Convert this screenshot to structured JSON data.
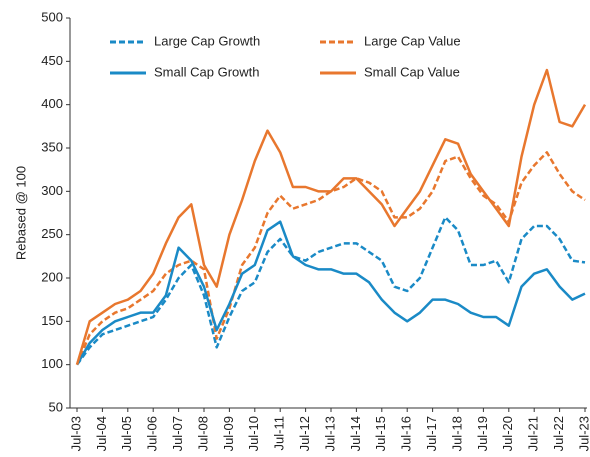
{
  "chart_data": {
    "type": "line",
    "y_axis_label": "Rebased @ 100",
    "categories": [
      "Jul-03",
      null,
      "Jul-04",
      null,
      "Jul-05",
      null,
      "Jul-06",
      null,
      "Jul-07",
      null,
      "Jul-08",
      null,
      "Jul-09",
      null,
      "Jul-10",
      null,
      "Jul-11",
      null,
      "Jul-12",
      null,
      "Jul-13",
      null,
      "Jul-14",
      null,
      "Jul-15",
      null,
      "Jul-16",
      null,
      "Jul-17",
      null,
      "Jul-18",
      null,
      "Jul-19",
      null,
      "Jul-20",
      null,
      "Jul-21",
      null,
      "Jul-22",
      null,
      "Jul-23"
    ],
    "series": [
      {
        "name": "Large Cap Growth",
        "color": "#1a8ac6",
        "style": "dashed",
        "values": [
          100,
          120,
          135,
          140,
          145,
          150,
          155,
          175,
          200,
          215,
          180,
          120,
          155,
          185,
          195,
          230,
          245,
          225,
          220,
          230,
          235,
          240,
          240,
          230,
          220,
          190,
          185,
          200,
          235,
          270,
          255,
          215,
          215,
          220,
          195,
          245,
          260,
          260,
          245,
          220,
          218
        ]
      },
      {
        "name": "Large Cap Value",
        "color": "#e8772e",
        "style": "dashed",
        "values": [
          100,
          135,
          150,
          160,
          165,
          175,
          185,
          205,
          215,
          220,
          210,
          130,
          165,
          215,
          235,
          275,
          295,
          280,
          285,
          290,
          300,
          305,
          315,
          310,
          300,
          270,
          270,
          280,
          300,
          335,
          340,
          315,
          295,
          285,
          265,
          310,
          330,
          345,
          320,
          300,
          290
        ]
      },
      {
        "name": "Small Cap Growth",
        "color": "#1a8ac6",
        "style": "solid",
        "values": [
          100,
          125,
          140,
          150,
          155,
          160,
          160,
          180,
          235,
          220,
          190,
          140,
          170,
          205,
          215,
          255,
          265,
          225,
          215,
          210,
          210,
          205,
          205,
          195,
          175,
          160,
          150,
          160,
          175,
          175,
          170,
          160,
          155,
          155,
          145,
          190,
          205,
          210,
          190,
          175,
          182
        ]
      },
      {
        "name": "Small Cap Value",
        "color": "#e8772e",
        "style": "solid",
        "values": [
          100,
          150,
          160,
          170,
          175,
          185,
          205,
          240,
          270,
          285,
          215,
          190,
          250,
          290,
          335,
          370,
          345,
          305,
          305,
          300,
          300,
          315,
          315,
          300,
          285,
          260,
          280,
          300,
          330,
          360,
          355,
          320,
          300,
          280,
          260,
          340,
          400,
          440,
          380,
          375,
          400
        ]
      }
    ],
    "ylim": [
      50,
      500
    ],
    "yticks": [
      50,
      100,
      150,
      200,
      250,
      300,
      350,
      400,
      450,
      500
    ],
    "grid": false
  }
}
